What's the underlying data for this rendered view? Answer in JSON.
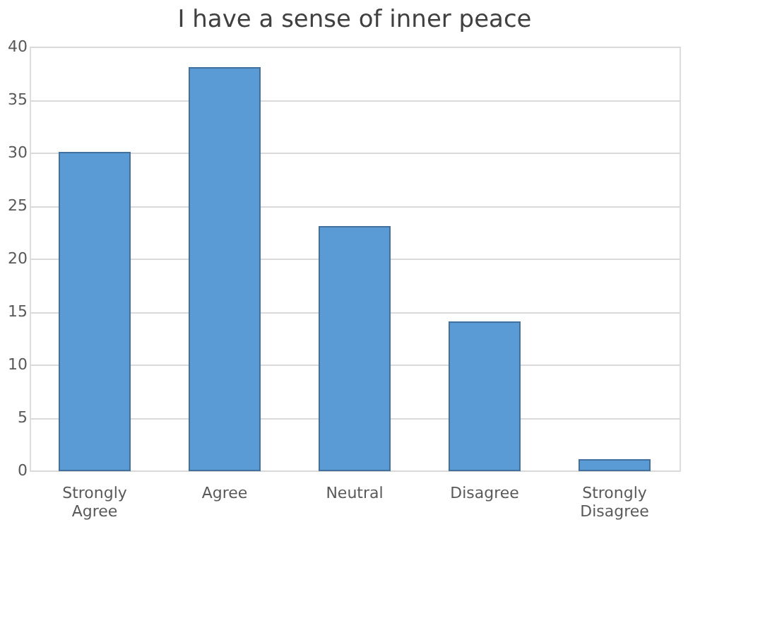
{
  "chart_data": {
    "type": "bar",
    "title": "I have a sense of inner peace",
    "categories": [
      "Strongly Agree",
      "Agree",
      "Neutral",
      "Disagree",
      "Strongly Disagree"
    ],
    "values": [
      30,
      38,
      23,
      14,
      1
    ],
    "color": "#5b9bd5",
    "ylim": [
      0,
      40
    ],
    "yticks": [
      0,
      5,
      10,
      15,
      20,
      25,
      30,
      35,
      40
    ],
    "grid": "y"
  }
}
